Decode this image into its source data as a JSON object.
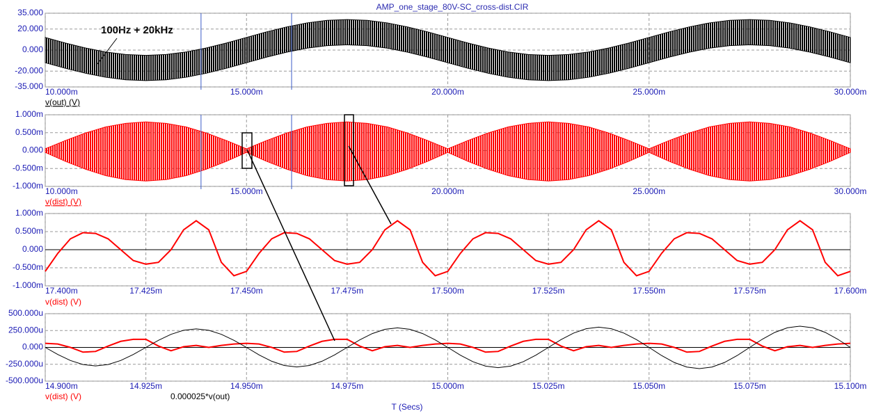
{
  "chart_data": [
    {
      "type": "band",
      "title": "AMP_one_stage_80V-SC_cross-dist.CIR",
      "name": "v(out) (V)",
      "color": "#000000",
      "annotation": "100Hz + 20kHz",
      "cursors": [
        13.87,
        16.12
      ],
      "xlim": [
        10,
        30
      ],
      "ylim": [
        -35,
        35
      ],
      "xticks": [
        {
          "value": 10,
          "label": "10.000m"
        },
        {
          "value": 15,
          "label": "15.000m"
        },
        {
          "value": 20,
          "label": "20.000m"
        },
        {
          "value": 25,
          "label": "25.000m"
        },
        {
          "value": 30,
          "label": "30.000m"
        }
      ],
      "yticks": [
        {
          "value": 35,
          "label": "35.000"
        },
        {
          "value": 20,
          "label": "20.000"
        },
        {
          "value": 0,
          "label": "0.000"
        },
        {
          "value": -20,
          "label": "-20.000"
        },
        {
          "value": -35,
          "label": "-35.000"
        }
      ],
      "grid": true,
      "x": [
        10,
        10.5,
        11,
        11.5,
        12,
        12.5,
        13,
        13.5,
        14,
        14.5,
        15,
        15.5,
        16,
        16.5,
        17,
        17.5,
        18,
        18.5,
        19,
        19.5,
        20,
        20.5,
        21,
        21.5,
        22,
        22.5,
        23,
        23.5,
        24,
        24.5,
        25,
        25.5,
        26,
        26.5,
        27,
        27.5,
        28,
        28.5,
        29,
        29.5,
        30
      ],
      "upper": [
        12,
        6.7,
        2,
        -1.8,
        -4.2,
        -5,
        -4.2,
        -1.8,
        2,
        6.7,
        12,
        17.3,
        22,
        25.8,
        28.2,
        29,
        28.2,
        25.8,
        22,
        17.3,
        12,
        6.7,
        2,
        -1.8,
        -4.2,
        -5,
        -4.2,
        -1.8,
        2,
        6.7,
        12,
        17.3,
        22,
        25.8,
        28.2,
        29,
        28.2,
        25.8,
        22,
        17.3,
        12
      ],
      "lower": [
        -12,
        -17.3,
        -22,
        -25.8,
        -28.2,
        -29,
        -28.2,
        -25.8,
        -22,
        -17.3,
        -12,
        -6.7,
        -2,
        1.8,
        4.2,
        5,
        4.2,
        1.8,
        -2,
        -6.7,
        -12,
        -17.3,
        -22,
        -25.8,
        -28.2,
        -29,
        -28.2,
        -25.8,
        -22,
        -17.3,
        -12,
        -6.7,
        -2,
        1.8,
        4.2,
        5,
        4.2,
        1.8,
        -2,
        -6.7,
        -12
      ]
    },
    {
      "type": "band",
      "name": "v(dist) (V)",
      "color": "#ff0000",
      "cursors": [
        13.87,
        16.12
      ],
      "xlim": [
        10,
        30
      ],
      "ylim": [
        -1,
        1
      ],
      "xticks": [
        {
          "value": 10,
          "label": "10.000m"
        },
        {
          "value": 15,
          "label": "15.000m"
        },
        {
          "value": 20,
          "label": "20.000m"
        },
        {
          "value": 25,
          "label": "25.000m"
        },
        {
          "value": 30,
          "label": "30.000m"
        }
      ],
      "yticks": [
        {
          "value": 1,
          "label": "1.000m"
        },
        {
          "value": 0.5,
          "label": "0.500m"
        },
        {
          "value": 0,
          "label": "0.000"
        },
        {
          "value": -0.5,
          "label": "-0.500m"
        },
        {
          "value": -1,
          "label": "-1.000m"
        }
      ],
      "grid": true,
      "x": [
        10,
        10.5,
        11,
        11.5,
        12,
        12.5,
        13,
        13.5,
        14,
        14.5,
        15,
        15.5,
        16,
        16.5,
        17,
        17.5,
        18,
        18.5,
        19,
        19.5,
        20,
        20.5,
        21,
        21.5,
        22,
        22.5,
        23,
        23.5,
        24,
        24.5,
        25,
        25.5,
        26,
        26.5,
        27,
        27.5,
        28,
        28.5,
        29,
        29.5,
        30
      ],
      "upper": [
        0.05,
        0.28,
        0.49,
        0.66,
        0.76,
        0.8,
        0.76,
        0.66,
        0.49,
        0.28,
        0.05,
        0.28,
        0.49,
        0.66,
        0.76,
        0.8,
        0.76,
        0.66,
        0.49,
        0.28,
        0.05,
        0.28,
        0.49,
        0.66,
        0.76,
        0.8,
        0.76,
        0.66,
        0.49,
        0.28,
        0.05,
        0.28,
        0.49,
        0.66,
        0.76,
        0.8,
        0.76,
        0.66,
        0.49,
        0.28,
        0.05
      ],
      "lower": [
        -0.05,
        -0.3,
        -0.52,
        -0.7,
        -0.81,
        -0.85,
        -0.81,
        -0.7,
        -0.52,
        -0.3,
        -0.05,
        -0.3,
        -0.52,
        -0.7,
        -0.81,
        -0.85,
        -0.81,
        -0.7,
        -0.52,
        -0.3,
        -0.05,
        -0.3,
        -0.52,
        -0.7,
        -0.81,
        -0.85,
        -0.81,
        -0.7,
        -0.52,
        -0.3,
        -0.05,
        -0.3,
        -0.52,
        -0.7,
        -0.81,
        -0.85,
        -0.81,
        -0.7,
        -0.52,
        -0.3,
        -0.05
      ]
    },
    {
      "type": "line",
      "xlim": [
        17.4,
        17.6
      ],
      "ylim": [
        -1,
        1
      ],
      "zero_line": true,
      "grid": true,
      "xticks": [
        {
          "value": 17.4,
          "label": "17.400m"
        },
        {
          "value": 17.425,
          "label": "17.425m"
        },
        {
          "value": 17.45,
          "label": "17.450m"
        },
        {
          "value": 17.475,
          "label": "17.475m"
        },
        {
          "value": 17.5,
          "label": "17.500m"
        },
        {
          "value": 17.525,
          "label": "17.525m"
        },
        {
          "value": 17.55,
          "label": "17.550m"
        },
        {
          "value": 17.575,
          "label": "17.575m"
        },
        {
          "value": 17.6,
          "label": "17.600m"
        }
      ],
      "yticks": [
        {
          "value": 1,
          "label": "1.000m"
        },
        {
          "value": 0.5,
          "label": "0.500m"
        },
        {
          "value": 0,
          "label": "0.000"
        },
        {
          "value": -0.5,
          "label": "-0.500m"
        },
        {
          "value": -1,
          "label": "-1.000m"
        }
      ],
      "x": [
        17.4,
        17.403125,
        17.40625,
        17.409375,
        17.4125,
        17.415625,
        17.41875,
        17.421875,
        17.425,
        17.428125,
        17.43125,
        17.434375,
        17.4375,
        17.440625,
        17.44375,
        17.446875,
        17.45,
        17.453125,
        17.45625,
        17.459375,
        17.4625,
        17.465625,
        17.46875,
        17.471875,
        17.475,
        17.478125,
        17.48125,
        17.484375,
        17.4875,
        17.490625,
        17.49375,
        17.496875,
        17.5,
        17.503125,
        17.50625,
        17.509375,
        17.5125,
        17.515625,
        17.51875,
        17.521875,
        17.525,
        17.528125,
        17.53125,
        17.534375,
        17.5375,
        17.540625,
        17.54375,
        17.546875,
        17.55,
        17.553125,
        17.55625,
        17.559375,
        17.5625,
        17.565625,
        17.56875,
        17.571875,
        17.575,
        17.578125,
        17.58125,
        17.584375,
        17.5875,
        17.590625,
        17.59375,
        17.596875,
        17.6
      ],
      "series": [
        {
          "name": "v(dist) (V)",
          "color": "#ff0000",
          "values": [
            -0.6,
            -0.1,
            0.3,
            0.47,
            0.45,
            0.3,
            0,
            -0.3,
            -0.4,
            -0.35,
            0,
            0.55,
            0.8,
            0.55,
            -0.35,
            -0.72,
            -0.6,
            -0.1,
            0.3,
            0.47,
            0.45,
            0.3,
            0,
            -0.3,
            -0.4,
            -0.35,
            0,
            0.55,
            0.8,
            0.55,
            -0.35,
            -0.72,
            -0.6,
            -0.1,
            0.3,
            0.47,
            0.45,
            0.3,
            0,
            -0.3,
            -0.4,
            -0.35,
            0,
            0.55,
            0.8,
            0.55,
            -0.35,
            -0.72,
            -0.6,
            -0.1,
            0.3,
            0.47,
            0.45,
            0.3,
            0,
            -0.3,
            -0.4,
            -0.35,
            0,
            0.55,
            0.8,
            0.55,
            -0.35,
            -0.72,
            -0.6
          ]
        }
      ]
    },
    {
      "type": "line",
      "xlabel": "T (Secs)",
      "xlim": [
        14.9,
        15.1
      ],
      "ylim": [
        -500,
        500
      ],
      "zero_line": true,
      "grid": true,
      "xticks": [
        {
          "value": 14.9,
          "label": "14.900m"
        },
        {
          "value": 14.925,
          "label": "14.925m"
        },
        {
          "value": 14.95,
          "label": "14.950m"
        },
        {
          "value": 14.975,
          "label": "14.975m"
        },
        {
          "value": 15,
          "label": "15.000m"
        },
        {
          "value": 15.025,
          "label": "15.025m"
        },
        {
          "value": 15.05,
          "label": "15.050m"
        },
        {
          "value": 15.075,
          "label": "15.075m"
        },
        {
          "value": 15.1,
          "label": "15.100m"
        }
      ],
      "yticks": [
        {
          "value": 500,
          "label": "500.000u"
        },
        {
          "value": 250,
          "label": "250.000u"
        },
        {
          "value": 0,
          "label": "0.000"
        },
        {
          "value": -250,
          "label": "-250.000u"
        },
        {
          "value": -500,
          "label": "-500.000u"
        }
      ],
      "x": [
        14.9,
        14.903125,
        14.90625,
        14.909375,
        14.9125,
        14.915625,
        14.91875,
        14.921875,
        14.925,
        14.928125,
        14.93125,
        14.934375,
        14.9375,
        14.940625,
        14.94375,
        14.946875,
        14.95,
        14.953125,
        14.95625,
        14.959375,
        14.9625,
        14.965625,
        14.96875,
        14.971875,
        14.975,
        14.978125,
        14.98125,
        14.984375,
        14.9875,
        14.990625,
        14.99375,
        14.996875,
        15,
        15.003125,
        15.00625,
        15.009375,
        15.0125,
        15.015625,
        15.01875,
        15.021875,
        15.025,
        15.028125,
        15.03125,
        15.034375,
        15.0375,
        15.040625,
        15.04375,
        15.046875,
        15.05,
        15.053125,
        15.05625,
        15.059375,
        15.0625,
        15.065625,
        15.06875,
        15.071875,
        15.075,
        15.078125,
        15.08125,
        15.084375,
        15.0875,
        15.090625,
        15.09375,
        15.096875,
        15.1
      ],
      "series": [
        {
          "name": "v(dist) (V)",
          "color": "#ff0000",
          "values": [
            60,
            50,
            0,
            -70,
            -60,
            20,
            90,
            120,
            120,
            20,
            -50,
            10,
            30,
            0,
            30,
            50,
            60,
            50,
            0,
            -70,
            -60,
            20,
            90,
            120,
            120,
            20,
            -50,
            10,
            30,
            0,
            30,
            50,
            60,
            50,
            0,
            -70,
            -60,
            20,
            90,
            120,
            120,
            20,
            -50,
            10,
            30,
            0,
            30,
            50,
            60,
            50,
            0,
            -70,
            -60,
            20,
            90,
            120,
            120,
            20,
            -50,
            10,
            30,
            0,
            30,
            50,
            60
          ]
        },
        {
          "name": "0.000025*v(out)",
          "color": "#000000",
          "values": [
            0,
            -105,
            -194,
            -254,
            -275,
            -254,
            -194,
            -105,
            0,
            105,
            194,
            254,
            275,
            254,
            194,
            105,
            0,
            -111,
            -205,
            -268,
            -290,
            -268,
            -205,
            -111,
            0,
            111,
            205,
            268,
            290,
            268,
            205,
            111,
            0,
            -115,
            -212,
            -277,
            -300,
            -277,
            -212,
            -115,
            0,
            115,
            212,
            277,
            300,
            277,
            212,
            115,
            0,
            -121,
            -223,
            -291,
            -315,
            -291,
            -223,
            -121,
            0,
            121,
            223,
            291,
            315,
            291,
            223,
            121,
            0
          ]
        }
      ]
    }
  ]
}
